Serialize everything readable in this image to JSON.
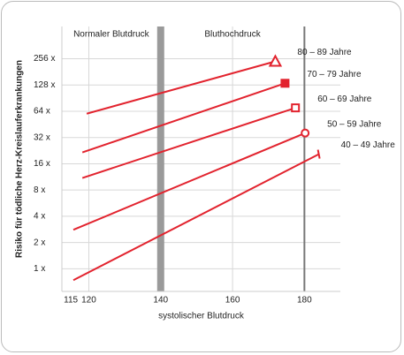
{
  "chart_data": {
    "type": "line",
    "x_label": "systolischer Blutdruck",
    "y_label": "Risiko für tödliche Herz-Kreislauferkrankungen",
    "annotations": [
      "Normaler Blutdruck",
      "Bluthochdruck"
    ],
    "reference_lines": [
      140,
      180
    ],
    "xlim": [
      112.5,
      190
    ],
    "xticks": [
      115,
      120,
      140,
      160,
      180
    ],
    "ylim": [
      0.55,
      600
    ],
    "log_y": true,
    "yticks": [
      {
        "value": 1,
        "label": "1 x"
      },
      {
        "value": 2,
        "label": "2 x"
      },
      {
        "value": 4,
        "label": "4 x"
      },
      {
        "value": 8,
        "label": "8 x"
      },
      {
        "value": 16,
        "label": "16 x"
      },
      {
        "value": 32,
        "label": "32 x"
      },
      {
        "value": 64,
        "label": "64 x"
      },
      {
        "value": 128,
        "label": "128 x"
      },
      {
        "value": 256,
        "label": "256 x"
      }
    ],
    "grid": true,
    "series": [
      {
        "name": "80 – 89 Jahre",
        "color": "#e2232e",
        "marker": "triangle",
        "x": [
          119.4,
          171.9
        ],
        "values": [
          60,
          239
        ]
      },
      {
        "name": "70 – 79 Jahre",
        "color": "#e2232e",
        "marker": "filled-square",
        "x": [
          118.2,
          174.6
        ],
        "values": [
          21.6,
          134
        ]
      },
      {
        "name": "60 – 69 Jahre",
        "color": "#e2232e",
        "marker": "open-square",
        "x": [
          118.2,
          177.5
        ],
        "values": [
          11,
          70
        ]
      },
      {
        "name": "50 – 59 Jahre",
        "color": "#e2232e",
        "marker": "circle",
        "x": [
          115.7,
          180.2
        ],
        "values": [
          2.8,
          36
        ]
      },
      {
        "name": "40 – 49 Jahre",
        "color": "#e2232e",
        "marker": "bar",
        "x": [
          115.7,
          184
        ],
        "values": [
          0.74,
          20.6
        ]
      }
    ]
  }
}
